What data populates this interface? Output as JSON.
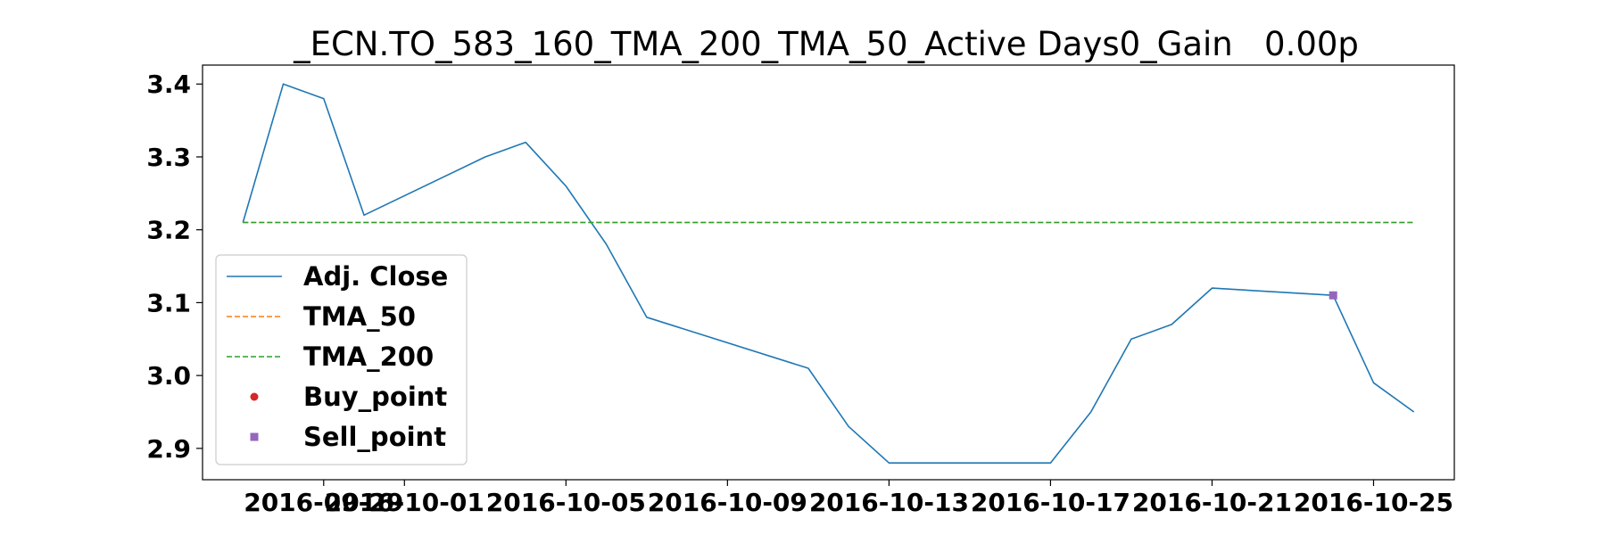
{
  "chart_data": {
    "type": "line",
    "title": "_ECN.TO_583_160_TMA_200_TMA_50_Active Days0_Gain   0.00p",
    "xlabel": "",
    "ylabel": "",
    "x": [
      "2016-09-27",
      "2016-09-28",
      "2016-09-29",
      "2016-09-30",
      "2016-10-03",
      "2016-10-04",
      "2016-10-05",
      "2016-10-06",
      "2016-10-07",
      "2016-10-11",
      "2016-10-12",
      "2016-10-13",
      "2016-10-14",
      "2016-10-17",
      "2016-10-18",
      "2016-10-19",
      "2016-10-20",
      "2016-10-21",
      "2016-10-24",
      "2016-10-25",
      "2016-10-26"
    ],
    "x_ticks": [
      "2016-09-29",
      "2016-10-01",
      "2016-10-05",
      "2016-10-09",
      "2016-10-13",
      "2016-10-17",
      "2016-10-21",
      "2016-10-25"
    ],
    "x_tick_labels": [
      "2016-09-29",
      "2016-10-01",
      "2016-10-05",
      "2016-10-09",
      "2016-10-13",
      "2016-10-17",
      "2016-10-21",
      "2016-10-25"
    ],
    "xlim": [
      "2016-09-26",
      "2016-10-27"
    ],
    "y_ticks": [
      2.9,
      3.0,
      3.1,
      3.2,
      3.3,
      3.4
    ],
    "y_tick_labels": [
      "2.9",
      "3.0",
      "3.1",
      "3.2",
      "3.3",
      "3.4"
    ],
    "ylim": [
      2.857,
      3.426
    ],
    "series": [
      {
        "name": "Adj. Close",
        "style": "solid",
        "color": "#1f77b4",
        "values": [
          3.21,
          3.4,
          3.38,
          3.22,
          3.3,
          3.32,
          3.26,
          3.18,
          3.08,
          3.01,
          2.93,
          2.88,
          2.88,
          2.88,
          2.95,
          3.05,
          3.07,
          3.12,
          3.11,
          2.99,
          2.95
        ]
      },
      {
        "name": "TMA_50",
        "style": "dashed",
        "color": "#ff7f0e",
        "values": [
          3.21,
          3.21,
          3.21,
          3.21,
          3.21,
          3.21,
          3.21,
          3.21,
          3.21,
          3.21,
          3.21,
          3.21,
          3.21,
          3.21,
          3.21,
          3.21,
          3.21,
          3.21,
          3.21,
          3.21,
          3.21
        ]
      },
      {
        "name": "TMA_200",
        "style": "dashed",
        "color": "#2ca02c",
        "values": [
          3.21,
          3.21,
          3.21,
          3.21,
          3.21,
          3.21,
          3.21,
          3.21,
          3.21,
          3.21,
          3.21,
          3.21,
          3.21,
          3.21,
          3.21,
          3.21,
          3.21,
          3.21,
          3.21,
          3.21,
          3.21
        ]
      }
    ],
    "buy_points": [],
    "sell_points": [
      {
        "x": "2016-10-24",
        "y": 3.11
      }
    ],
    "markers": {
      "buy": {
        "name": "Buy_point",
        "shape": "circle",
        "color": "#d62728"
      },
      "sell": {
        "name": "Sell_point",
        "shape": "square",
        "color": "#9467bd"
      }
    },
    "grid": false,
    "legend_position": "lower-left",
    "legend": [
      "Adj. Close",
      "TMA_50",
      "TMA_200",
      "Buy_point",
      "Sell_point"
    ]
  }
}
